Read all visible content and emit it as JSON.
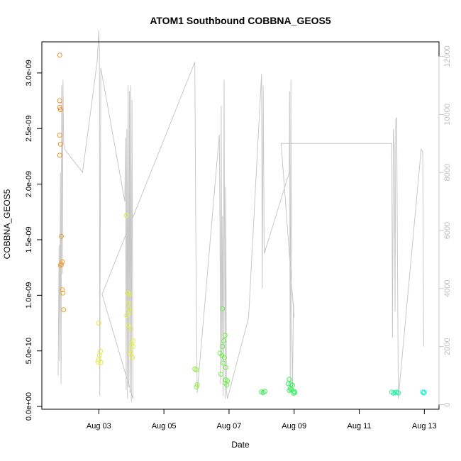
{
  "chart_data": {
    "type": "scatter",
    "title": "ATOM1 Southbound COBBNA_GEOS5",
    "xlabel": "Date",
    "ylabel": "COBBNA_GEOS5",
    "x_ticks": [
      "Aug 03",
      "Aug 05",
      "Aug 07",
      "Aug 09",
      "Aug 11",
      "Aug 13"
    ],
    "x_tick_days": [
      3,
      5,
      7,
      9,
      11,
      13
    ],
    "xlim_days": [
      1.25,
      13.45
    ],
    "y_ticks": [
      "0.0e+00",
      "5.0e-10",
      "1.0e-09",
      "1.5e-09",
      "2.0e-09",
      "2.5e-09",
      "3.0e-09"
    ],
    "y_tick_values": [
      0,
      5e-10,
      1e-09,
      1.5e-09,
      2e-09,
      2.5e-09,
      3e-09
    ],
    "ylim": [
      -2.5e-11,
      3.28e-09
    ],
    "y2_ticks": [
      "0",
      "2000",
      "4000",
      "6000",
      "8000",
      "10000",
      "12000"
    ],
    "y2_tick_values": [
      0,
      2000,
      4000,
      6000,
      8000,
      10000,
      12000
    ],
    "y2lim": [
      -160,
      12500
    ],
    "altitude_color": "#c8c8c8",
    "points": [
      {
        "x": 1.8,
        "y": 3.16e-09,
        "c": "#f28c1e"
      },
      {
        "x": 1.8,
        "y": 2.75e-09,
        "c": "#f28c1e"
      },
      {
        "x": 1.8,
        "y": 2.69e-09,
        "c": "#f28c1e"
      },
      {
        "x": 1.82,
        "y": 2.67e-09,
        "c": "#f28c1e"
      },
      {
        "x": 1.8,
        "y": 2.44e-09,
        "c": "#f29320"
      },
      {
        "x": 1.82,
        "y": 2.36e-09,
        "c": "#f29320"
      },
      {
        "x": 1.8,
        "y": 2.26e-09,
        "c": "#f29320"
      },
      {
        "x": 1.85,
        "y": 1.53e-09,
        "c": "#f29a22"
      },
      {
        "x": 1.88,
        "y": 1.3e-09,
        "c": "#f29a22"
      },
      {
        "x": 1.85,
        "y": 1.28e-09,
        "c": "#f29a22"
      },
      {
        "x": 1.82,
        "y": 1.27e-09,
        "c": "#f29a22"
      },
      {
        "x": 1.88,
        "y": 1.05e-09,
        "c": "#f2a024"
      },
      {
        "x": 1.9,
        "y": 1.02e-09,
        "c": "#f2a024"
      },
      {
        "x": 1.92,
        "y": 8.7e-10,
        "c": "#f2a024"
      },
      {
        "x": 3.0,
        "y": 7.5e-10,
        "c": "#e8e838"
      },
      {
        "x": 3.05,
        "y": 4.97e-10,
        "c": "#e8e838"
      },
      {
        "x": 3.02,
        "y": 4.6e-10,
        "c": "#e8e838"
      },
      {
        "x": 3.0,
        "y": 4.2e-10,
        "c": "#e8e838"
      },
      {
        "x": 2.98,
        "y": 4e-10,
        "c": "#e8e838"
      },
      {
        "x": 3.06,
        "y": 3.95e-10,
        "c": "#e8e838"
      },
      {
        "x": 3.85,
        "y": 1.72e-09,
        "c": "#e4f03a"
      },
      {
        "x": 3.88,
        "y": 1.02e-09,
        "c": "#e4f03a"
      },
      {
        "x": 3.95,
        "y": 1.01e-09,
        "c": "#e4f03a"
      },
      {
        "x": 3.9,
        "y": 9.3e-10,
        "c": "#e4f03a"
      },
      {
        "x": 3.92,
        "y": 8.8e-10,
        "c": "#e4f03a"
      },
      {
        "x": 3.98,
        "y": 8.5e-10,
        "c": "#e4f03a"
      },
      {
        "x": 3.86,
        "y": 8.2e-10,
        "c": "#e4f03a"
      },
      {
        "x": 3.9,
        "y": 7.3e-10,
        "c": "#e4f03a"
      },
      {
        "x": 3.96,
        "y": 7e-10,
        "c": "#e4f03a"
      },
      {
        "x": 4.05,
        "y": 5.9e-10,
        "c": "#e4f03a"
      },
      {
        "x": 4.0,
        "y": 5.6e-10,
        "c": "#e4f03a"
      },
      {
        "x": 4.05,
        "y": 5.4e-10,
        "c": "#e4f03a"
      },
      {
        "x": 3.95,
        "y": 5e-10,
        "c": "#e4f03a"
      },
      {
        "x": 3.98,
        "y": 4.7e-10,
        "c": "#e4f03a"
      },
      {
        "x": 4.03,
        "y": 4.4e-10,
        "c": "#e4f03a"
      },
      {
        "x": 5.95,
        "y": 3.38e-10,
        "c": "#8ef03c"
      },
      {
        "x": 6.0,
        "y": 3.3e-10,
        "c": "#8ef03c"
      },
      {
        "x": 6.02,
        "y": 1.95e-10,
        "c": "#8ef03c"
      },
      {
        "x": 6.0,
        "y": 1.75e-10,
        "c": "#8ef03c"
      },
      {
        "x": 6.8,
        "y": 8.8e-10,
        "c": "#6cf046"
      },
      {
        "x": 6.88,
        "y": 6.4e-10,
        "c": "#6cf046"
      },
      {
        "x": 6.84,
        "y": 5.9e-10,
        "c": "#6cf046"
      },
      {
        "x": 6.8,
        "y": 5.4e-10,
        "c": "#6cf046"
      },
      {
        "x": 6.72,
        "y": 4.8e-10,
        "c": "#6cf046"
      },
      {
        "x": 6.78,
        "y": 4.6e-10,
        "c": "#6cf046"
      },
      {
        "x": 6.86,
        "y": 4.4e-10,
        "c": "#6cf046"
      },
      {
        "x": 6.82,
        "y": 3.9e-10,
        "c": "#6cf046"
      },
      {
        "x": 6.9,
        "y": 3.5e-10,
        "c": "#6cf046"
      },
      {
        "x": 6.75,
        "y": 2.9e-10,
        "c": "#6cf046"
      },
      {
        "x": 6.9,
        "y": 2.4e-10,
        "c": "#6cf046"
      },
      {
        "x": 6.95,
        "y": 2.3e-10,
        "c": "#6cf046"
      },
      {
        "x": 6.88,
        "y": 2.1e-10,
        "c": "#6cf046"
      },
      {
        "x": 6.93,
        "y": 1.95e-10,
        "c": "#6cf046"
      },
      {
        "x": 8.0,
        "y": 1.3e-10,
        "c": "#3cf050"
      },
      {
        "x": 8.05,
        "y": 1.25e-10,
        "c": "#3cf050"
      },
      {
        "x": 8.1,
        "y": 1.35e-10,
        "c": "#3cf050"
      },
      {
        "x": 8.85,
        "y": 2.45e-10,
        "c": "#32f05a"
      },
      {
        "x": 8.82,
        "y": 2.05e-10,
        "c": "#32f05a"
      },
      {
        "x": 8.9,
        "y": 2e-10,
        "c": "#32f05a"
      },
      {
        "x": 8.95,
        "y": 1.9e-10,
        "c": "#32f05a"
      },
      {
        "x": 8.88,
        "y": 1.6e-10,
        "c": "#32f05a"
      },
      {
        "x": 8.85,
        "y": 1.45e-10,
        "c": "#32f05a"
      },
      {
        "x": 8.92,
        "y": 1.5e-10,
        "c": "#32f05a"
      },
      {
        "x": 9.0,
        "y": 1.35e-10,
        "c": "#32f05a"
      },
      {
        "x": 8.98,
        "y": 1.2e-10,
        "c": "#32f05a"
      },
      {
        "x": 9.02,
        "y": 1.25e-10,
        "c": "#32f05a"
      },
      {
        "x": 12.0,
        "y": 1.3e-10,
        "c": "#20f0a0"
      },
      {
        "x": 12.05,
        "y": 1.2e-10,
        "c": "#20f0a0"
      },
      {
        "x": 12.1,
        "y": 1.25e-10,
        "c": "#20f0a0"
      },
      {
        "x": 12.15,
        "y": 1.28e-10,
        "c": "#20f0a0"
      },
      {
        "x": 12.2,
        "y": 1.22e-10,
        "c": "#20f0a0"
      },
      {
        "x": 12.95,
        "y": 1.3e-10,
        "c": "#20f0c8"
      },
      {
        "x": 12.98,
        "y": 1.22e-10,
        "c": "#20f0c8"
      },
      {
        "x": 13.0,
        "y": 1.26e-10,
        "c": "#20f0c8"
      }
    ],
    "altitude": [
      [
        1.75,
        1000
      ],
      [
        1.78,
        5500
      ],
      [
        1.8,
        1500
      ],
      [
        1.82,
        8000
      ],
      [
        1.84,
        700
      ],
      [
        1.86,
        11000
      ],
      [
        1.88,
        4500
      ],
      [
        1.9,
        11200
      ],
      [
        1.92,
        9000
      ],
      [
        1.95,
        8800
      ],
      [
        2.5,
        8000
      ],
      [
        2.95,
        11800
      ],
      [
        3.0,
        12900
      ],
      [
        3.02,
        12200
      ],
      [
        3.03,
        300
      ],
      [
        3.06,
        11600
      ],
      [
        3.8,
        7000
      ],
      [
        3.82,
        9200
      ],
      [
        3.84,
        500
      ],
      [
        3.86,
        9500
      ],
      [
        3.88,
        200
      ],
      [
        3.9,
        11000
      ],
      [
        3.92,
        600
      ],
      [
        3.94,
        10800
      ],
      [
        3.96,
        400
      ],
      [
        3.98,
        11000
      ],
      [
        4.0,
        100
      ],
      [
        4.02,
        10500
      ],
      [
        4.05,
        200
      ],
      [
        3.1,
        3800
      ],
      [
        5.95,
        11800
      ],
      [
        5.98,
        5800
      ],
      [
        6.02,
        400
      ],
      [
        6.7,
        9300
      ],
      [
        6.72,
        6500
      ],
      [
        6.74,
        700
      ],
      [
        6.76,
        10300
      ],
      [
        6.78,
        1500
      ],
      [
        6.8,
        6500
      ],
      [
        6.82,
        300
      ],
      [
        6.85,
        11200
      ],
      [
        6.88,
        200
      ],
      [
        6.9,
        7500
      ],
      [
        6.92,
        500
      ],
      [
        6.95,
        200
      ],
      [
        7.6,
        3000
      ],
      [
        8.0,
        11400
      ],
      [
        8.02,
        4000
      ],
      [
        8.05,
        11000
      ],
      [
        8.08,
        5200
      ],
      [
        8.85,
        8000
      ],
      [
        8.86,
        10800
      ],
      [
        8.88,
        500
      ],
      [
        8.9,
        11200
      ],
      [
        8.92,
        3200
      ],
      [
        8.95,
        600
      ],
      [
        8.98,
        3500
      ],
      [
        9.0,
        3000
      ],
      [
        8.6,
        9000
      ],
      [
        12.0,
        9000
      ],
      [
        12.02,
        2300
      ],
      [
        12.05,
        9500
      ],
      [
        12.08,
        8800
      ],
      [
        12.1,
        3200
      ],
      [
        12.12,
        9800
      ],
      [
        12.15,
        9900
      ],
      [
        12.2,
        200
      ],
      [
        12.9,
        8800
      ],
      [
        12.95,
        8700
      ],
      [
        12.98,
        2000
      ]
    ]
  }
}
